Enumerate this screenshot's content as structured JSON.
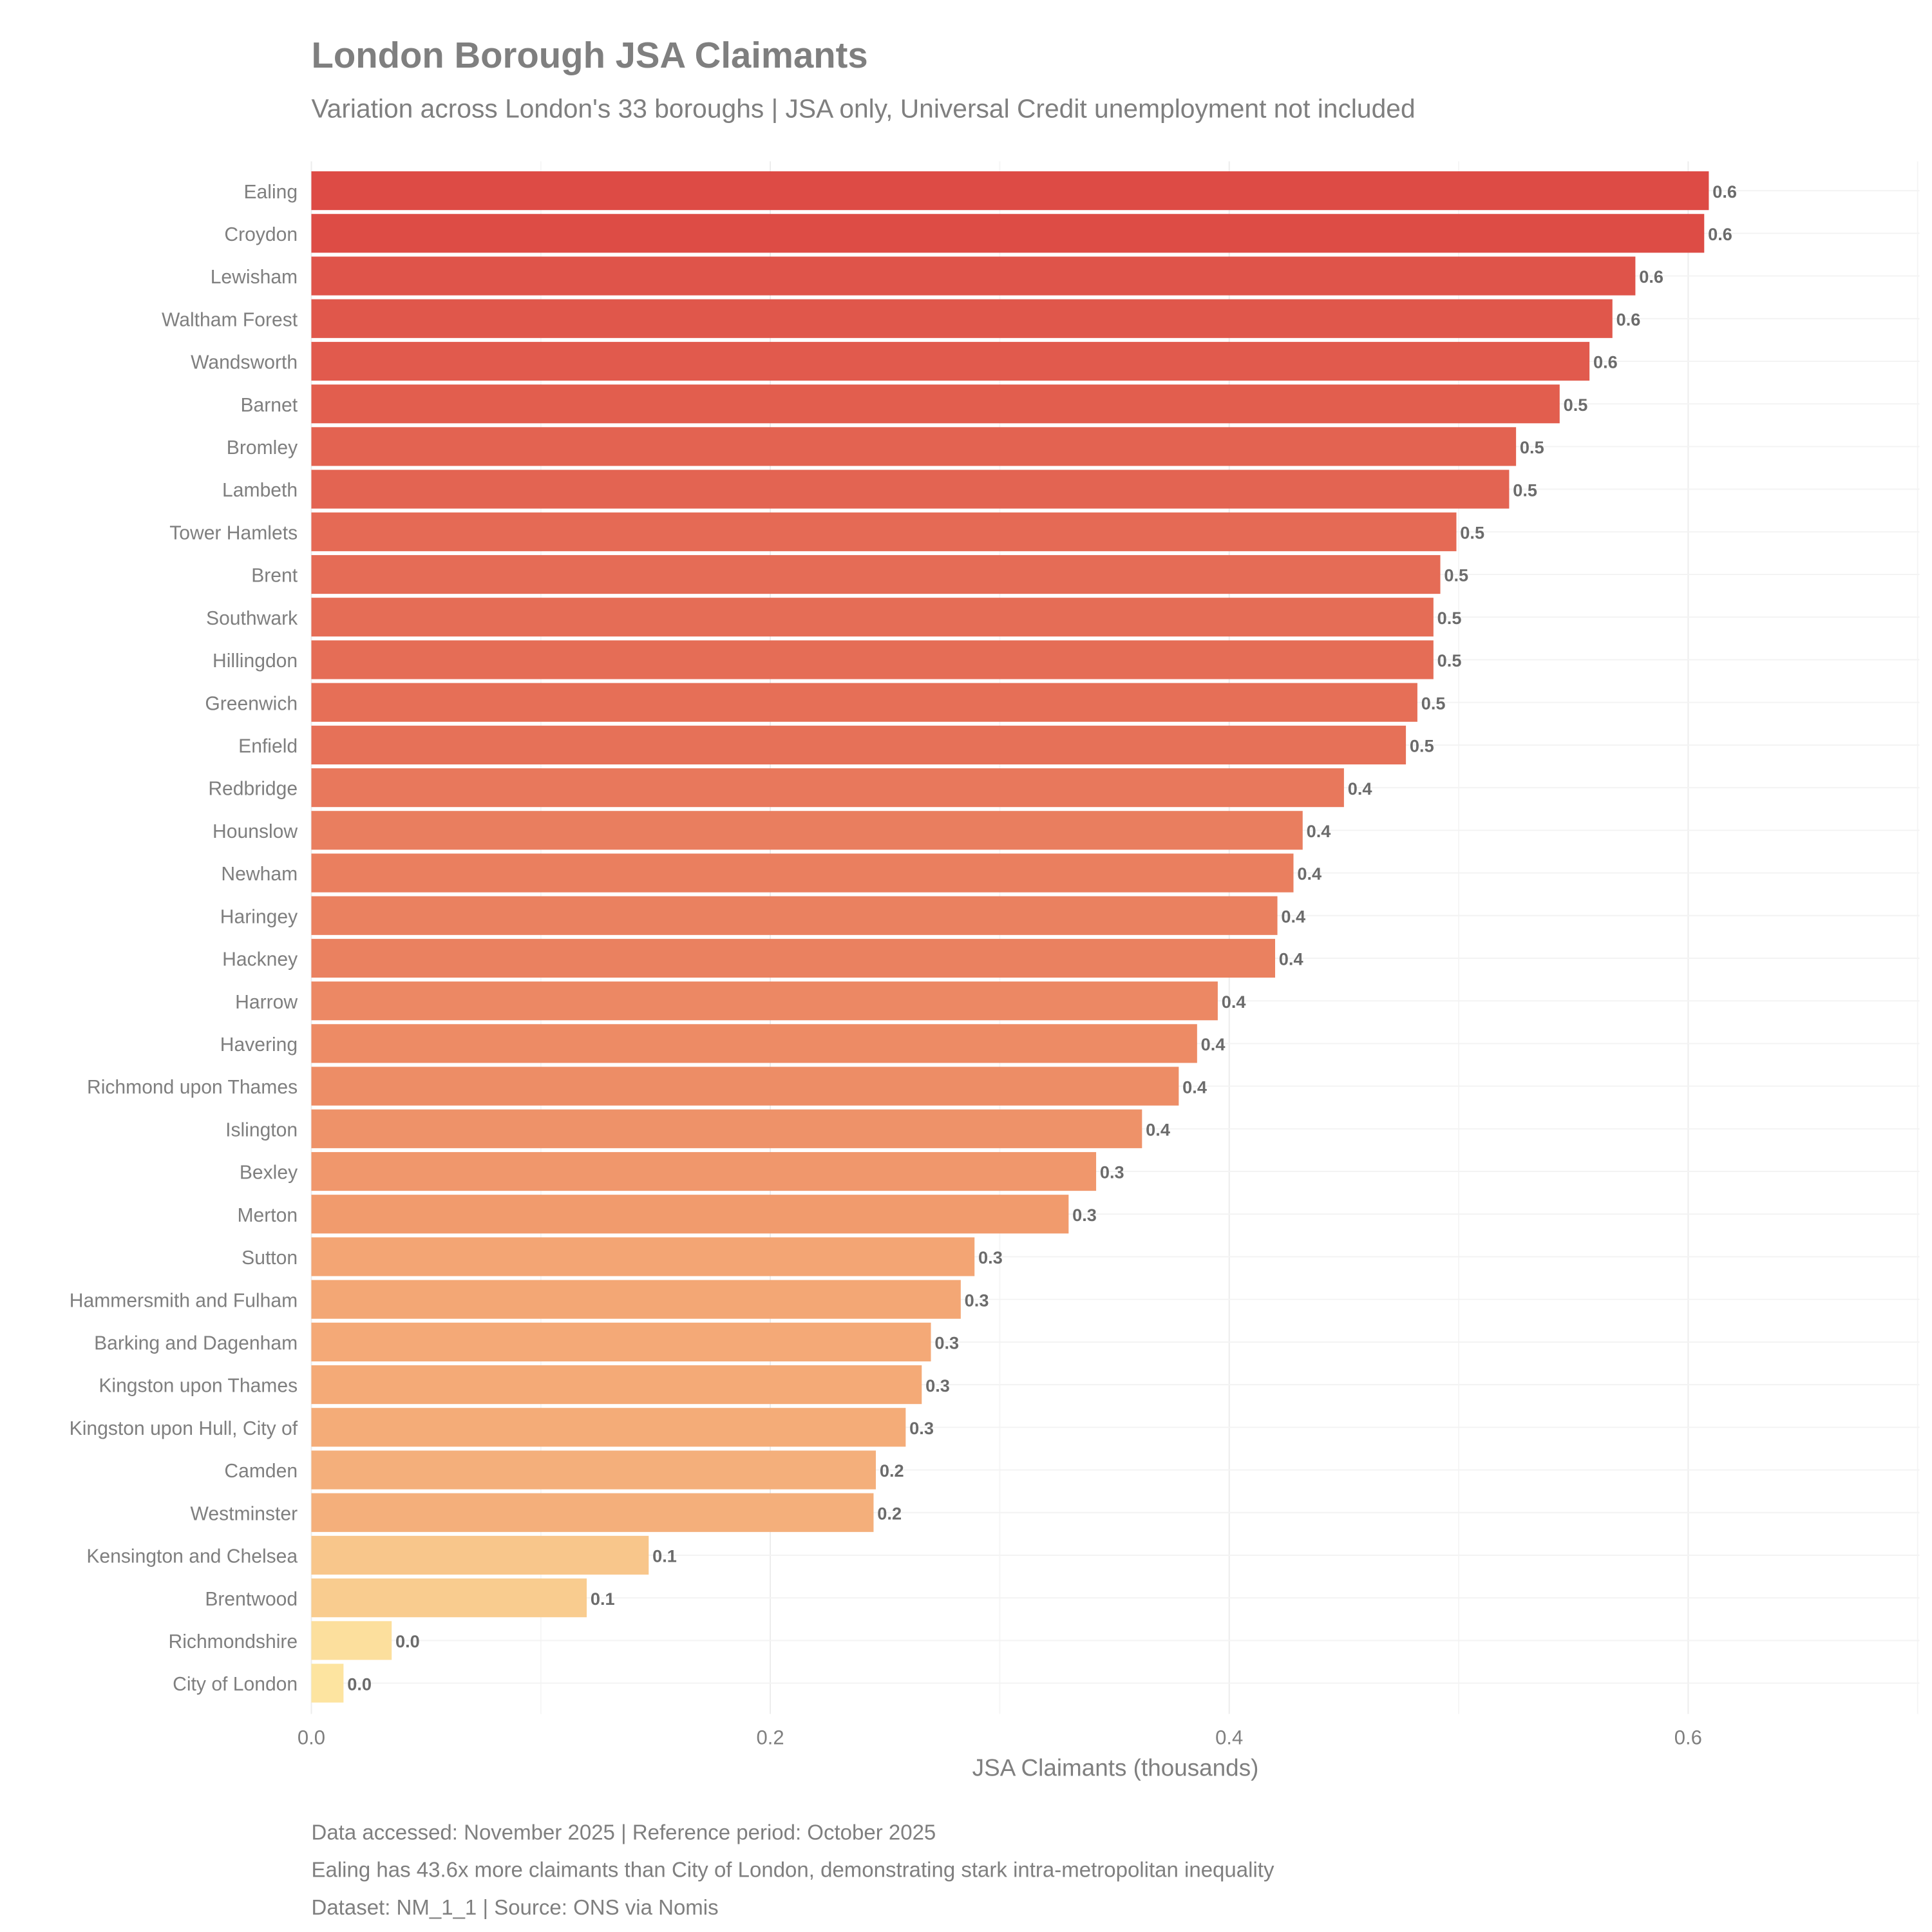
{
  "chart_data": {
    "type": "bar",
    "orientation": "horizontal",
    "title": "London Borough JSA Claimants",
    "subtitle": "Variation across London's 33 boroughs | JSA only, Universal Credit unemployment not included",
    "xlabel": "JSA Claimants (thousands)",
    "ylabel": "",
    "xlim": [
      0,
      0.7
    ],
    "xticks": [
      "0.0",
      "0.2",
      "0.4",
      "0.6"
    ],
    "grid": true,
    "colors": {
      "high": "#dd4b45",
      "mid": "#f2a070",
      "low": "#fde4a0",
      "text": "#7f7f7f",
      "label": "#6b6b6b"
    },
    "categories": [
      "Ealing",
      "Croydon",
      "Lewisham",
      "Waltham Forest",
      "Wandsworth",
      "Barnet",
      "Bromley",
      "Lambeth",
      "Tower Hamlets",
      "Brent",
      "Southwark",
      "Hillingdon",
      "Greenwich",
      "Enfield",
      "Redbridge",
      "Hounslow",
      "Newham",
      "Haringey",
      "Hackney",
      "Harrow",
      "Havering",
      "Richmond upon Thames",
      "Islington",
      "Bexley",
      "Merton",
      "Sutton",
      "Hammersmith and Fulham",
      "Barking and Dagenham",
      "Kingston upon Thames",
      "Kingston upon Hull, City of",
      "Camden",
      "Westminster",
      "Kensington and Chelsea",
      "Brentwood",
      "Richmondshire",
      "City of London"
    ],
    "values": [
      0.609,
      0.607,
      0.577,
      0.567,
      0.557,
      0.544,
      0.525,
      0.522,
      0.499,
      0.492,
      0.489,
      0.489,
      0.482,
      0.477,
      0.45,
      0.432,
      0.428,
      0.421,
      0.42,
      0.395,
      0.386,
      0.378,
      0.362,
      0.342,
      0.33,
      0.289,
      0.283,
      0.27,
      0.266,
      0.259,
      0.246,
      0.245,
      0.147,
      0.12,
      0.035,
      0.014
    ],
    "data_labels": [
      "0.6",
      "0.6",
      "0.6",
      "0.6",
      "0.6",
      "0.5",
      "0.5",
      "0.5",
      "0.5",
      "0.5",
      "0.5",
      "0.5",
      "0.5",
      "0.5",
      "0.4",
      "0.4",
      "0.4",
      "0.4",
      "0.4",
      "0.4",
      "0.4",
      "0.4",
      "0.4",
      "0.3",
      "0.3",
      "0.3",
      "0.3",
      "0.3",
      "0.3",
      "0.3",
      "0.2",
      "0.2",
      "0.1",
      "0.1",
      "0.0",
      "0.0"
    ],
    "captions": [
      "Data accessed: November 2025 | Reference period: October 2025",
      "Ealing has 43.6x more claimants than City of London, demonstrating stark intra-metropolitan inequality",
      "Dataset: NM_1_1 | Source: ONS via Nomis"
    ]
  }
}
